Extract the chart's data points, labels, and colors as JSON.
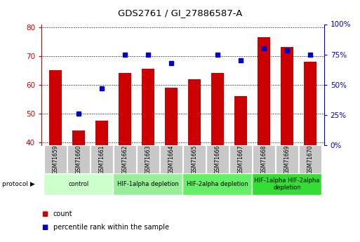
{
  "title": "GDS2761 / GI_27886587-A",
  "samples": [
    "GSM71659",
    "GSM71660",
    "GSM71661",
    "GSM71662",
    "GSM71663",
    "GSM71664",
    "GSM71665",
    "GSM71666",
    "GSM71667",
    "GSM71668",
    "GSM71669",
    "GSM71670"
  ],
  "counts": [
    65,
    44,
    47.5,
    64,
    65.5,
    59,
    62,
    64,
    56,
    76.5,
    73,
    68
  ],
  "percentiles": [
    null,
    26,
    47,
    75,
    75,
    68,
    null,
    75,
    70,
    80,
    78,
    75
  ],
  "ylim_left": [
    39,
    81
  ],
  "ylim_right": [
    0,
    100
  ],
  "yticks_left": [
    40,
    50,
    60,
    70,
    80
  ],
  "yticks_right": [
    0,
    25,
    50,
    75,
    100
  ],
  "bar_color": "#cc0000",
  "dot_color": "#0000cc",
  "protocol_groups": [
    {
      "label": "control",
      "start": 0,
      "end": 2,
      "color": "#ccffcc"
    },
    {
      "label": "HIF-1alpha depletion",
      "start": 3,
      "end": 5,
      "color": "#99ee99"
    },
    {
      "label": "HIF-2alpha depletion",
      "start": 6,
      "end": 8,
      "color": "#66ee66"
    },
    {
      "label": "HIF-1alpha HIF-2alpha\ndepletion",
      "start": 9,
      "end": 11,
      "color": "#33dd33"
    }
  ],
  "tick_label_bg": "#c8c8c8",
  "figsize": [
    5.13,
    3.45
  ],
  "dpi": 100
}
